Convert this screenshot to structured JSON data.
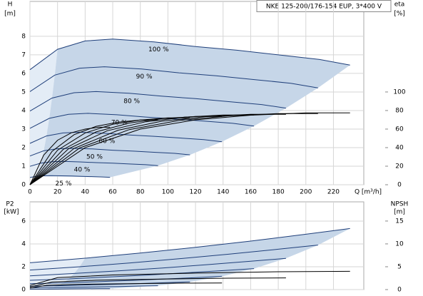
{
  "chart_data": [
    {
      "type": "line",
      "title": "NKE 125-200/176-154 EUP, 3*400 V",
      "y_label": "H",
      "y_unit": "[m]",
      "y2_label": "eta",
      "y2_unit": "[%]",
      "x_label": "Q [m³/h]",
      "xlim": [
        0,
        242
      ],
      "xticks": [
        0,
        20,
        40,
        60,
        80,
        100,
        120,
        140,
        160,
        180,
        200,
        220
      ],
      "ylim": [
        0,
        9.88
      ],
      "yticks": [
        0,
        1,
        2,
        3,
        4,
        5,
        6,
        7,
        8
      ],
      "y2lim": [
        0,
        197.6
      ],
      "y2ticks": [
        0,
        20,
        40,
        60,
        80,
        100
      ],
      "grid": true,
      "series": [
        {
          "name": "100 %",
          "color": "#1f3f7a",
          "x": [
            0,
            20,
            40,
            60,
            90,
            120,
            150,
            180,
            210,
            232
          ],
          "values": [
            6.2,
            7.3,
            7.75,
            7.85,
            7.7,
            7.45,
            7.25,
            7.0,
            6.75,
            6.45
          ]
        },
        {
          "name": "90 %",
          "color": "#1f3f7a",
          "x": [
            0,
            18,
            36,
            54,
            81,
            108,
            135,
            162,
            189,
            208.8
          ],
          "values": [
            5.02,
            5.91,
            6.28,
            6.36,
            6.24,
            6.03,
            5.87,
            5.67,
            5.47,
            5.22
          ]
        },
        {
          "name": "80 %",
          "color": "#1f3f7a",
          "x": [
            0,
            16,
            32,
            48,
            72,
            96,
            120,
            144,
            168,
            185.6
          ],
          "values": [
            3.97,
            4.67,
            4.96,
            5.02,
            4.93,
            4.77,
            4.64,
            4.48,
            4.32,
            4.13
          ]
        },
        {
          "name": "70 %",
          "color": "#1f3f7a",
          "x": [
            0,
            14,
            28,
            42,
            63,
            84,
            105,
            126,
            147,
            162.4
          ],
          "values": [
            3.04,
            3.58,
            3.8,
            3.85,
            3.77,
            3.65,
            3.55,
            3.43,
            3.31,
            3.16
          ]
        },
        {
          "name": "60 %",
          "color": "#1f3f7a",
          "x": [
            0,
            12,
            24,
            36,
            54,
            72,
            90,
            108,
            126,
            139.2
          ],
          "values": [
            2.23,
            2.63,
            2.79,
            2.83,
            2.77,
            2.68,
            2.61,
            2.52,
            2.43,
            2.32
          ]
        },
        {
          "name": "50 %",
          "color": "#1f3f7a",
          "x": [
            0,
            10,
            20,
            30,
            45,
            60,
            75,
            90,
            105,
            116
          ],
          "values": [
            1.55,
            1.83,
            1.94,
            1.96,
            1.93,
            1.86,
            1.81,
            1.75,
            1.69,
            1.61
          ]
        },
        {
          "name": "40 %",
          "color": "#1f3f7a",
          "x": [
            0,
            8,
            16,
            24,
            36,
            48,
            60,
            72,
            84,
            92.8
          ],
          "values": [
            0.99,
            1.17,
            1.24,
            1.26,
            1.23,
            1.19,
            1.16,
            1.12,
            1.08,
            1.03
          ]
        },
        {
          "name": "25 %",
          "color": "#1f3f7a",
          "x": [
            0,
            5,
            10,
            15,
            22.5,
            30,
            37.5,
            45,
            52.5,
            58
          ],
          "values": [
            0.39,
            0.46,
            0.48,
            0.49,
            0.48,
            0.47,
            0.45,
            0.44,
            0.42,
            0.4
          ]
        },
        {
          "axis": "y2",
          "color": "#000000",
          "x": [
            0,
            40,
            80,
            120,
            160,
            200,
            232
          ],
          "values": [
            0,
            40,
            60,
            70,
            75,
            77.5,
            77.5
          ]
        },
        {
          "axis": "y2",
          "color": "#000000",
          "x": [
            0,
            36,
            72,
            108,
            144,
            180,
            208.8
          ],
          "values": [
            0,
            39.6,
            59.4,
            69.3,
            74.3,
            76.7,
            76.7
          ]
        },
        {
          "axis": "y2",
          "color": "#000000",
          "x": [
            0,
            32,
            64,
            96,
            128,
            160,
            185.6
          ],
          "values": [
            0,
            39.2,
            58.8,
            68.6,
            73.5,
            76.0,
            76.0
          ]
        },
        {
          "axis": "y2",
          "color": "#000000",
          "x": [
            0,
            28,
            56,
            84,
            112,
            140,
            162.4
          ],
          "values": [
            0,
            38.8,
            58.2,
            67.9,
            72.8,
            75.2,
            75.2
          ]
        },
        {
          "axis": "y2",
          "color": "#000000",
          "x": [
            0,
            24,
            48,
            72,
            96,
            120,
            139.2
          ],
          "values": [
            0,
            38,
            57,
            66.5,
            71.3,
            73.6,
            73.6
          ]
        },
        {
          "axis": "y2",
          "color": "#000000",
          "x": [
            0,
            20,
            40,
            60,
            80,
            100,
            116
          ],
          "values": [
            0,
            37.2,
            55.8,
            65.1,
            69.8,
            72.1,
            72.1
          ]
        },
        {
          "axis": "y2",
          "color": "#000000",
          "x": [
            0,
            16,
            32,
            48,
            64,
            80,
            92.8
          ],
          "values": [
            0,
            36,
            54,
            63,
            67.5,
            69.8,
            69.8
          ]
        },
        {
          "axis": "y2",
          "color": "#000000",
          "x": [
            0,
            10,
            20,
            30,
            40,
            50,
            58
          ],
          "values": [
            0,
            32,
            48,
            56,
            60,
            62,
            62
          ]
        }
      ]
    },
    {
      "type": "line",
      "y_label": "P2",
      "y_unit": "[kW]",
      "y2_label": "NPSH",
      "y2_unit": "[m]",
      "xlim": [
        0,
        242
      ],
      "xticks": [
        0,
        20,
        40,
        60,
        80,
        100,
        120,
        140,
        160,
        180,
        200,
        220
      ],
      "ylim": [
        0,
        7.69
      ],
      "yticks": [
        0,
        2,
        4,
        6
      ],
      "y2lim": [
        0,
        19.2
      ],
      "y2ticks": [
        0,
        5,
        10,
        15
      ],
      "grid": true,
      "series": [
        {
          "color": "#1f3f7a",
          "x": [
            0,
            40,
            80,
            120,
            160,
            200,
            232
          ],
          "values": [
            2.35,
            2.75,
            3.2,
            3.7,
            4.25,
            4.85,
            5.35
          ]
        },
        {
          "color": "#1f3f7a",
          "x": [
            0,
            36,
            72,
            108,
            144,
            180,
            208.8
          ],
          "values": [
            1.71,
            2.0,
            2.33,
            2.7,
            3.1,
            3.54,
            3.9
          ]
        },
        {
          "color": "#1f3f7a",
          "x": [
            0,
            32,
            64,
            96,
            128,
            160,
            185.6
          ],
          "values": [
            1.2,
            1.41,
            1.64,
            1.89,
            2.18,
            2.48,
            2.74
          ]
        },
        {
          "color": "#1f3f7a",
          "x": [
            0,
            28,
            56,
            84,
            112,
            140,
            162.4
          ],
          "values": [
            0.81,
            0.94,
            1.1,
            1.27,
            1.46,
            1.66,
            1.84
          ]
        },
        {
          "color": "#1f3f7a",
          "x": [
            0,
            24,
            48,
            72,
            96,
            120,
            139.2
          ],
          "values": [
            0.51,
            0.59,
            0.69,
            0.8,
            0.92,
            1.05,
            1.16
          ]
        },
        {
          "color": "#1f3f7a",
          "x": [
            0,
            20,
            40,
            60,
            80,
            100,
            116
          ],
          "values": [
            0.29,
            0.34,
            0.4,
            0.46,
            0.53,
            0.61,
            0.67
          ]
        },
        {
          "color": "#1f3f7a",
          "x": [
            0,
            16,
            32,
            48,
            64,
            80,
            92.8
          ],
          "values": [
            0.15,
            0.18,
            0.2,
            0.24,
            0.27,
            0.31,
            0.34
          ]
        },
        {
          "color": "#1f3f7a",
          "x": [
            0,
            10,
            20,
            30,
            40,
            50,
            58
          ],
          "values": [
            0.04,
            0.04,
            0.05,
            0.06,
            0.07,
            0.08,
            0.08
          ]
        },
        {
          "axis": "y2",
          "color": "#000000",
          "x": [
            0,
            20,
            60,
            120,
            180,
            232
          ],
          "values": [
            0.9,
            2.6,
            3.2,
            3.6,
            3.9,
            4.0
          ]
        },
        {
          "axis": "y2",
          "color": "#000000",
          "x": [
            0,
            16,
            48,
            96,
            144,
            185.6
          ],
          "values": [
            0.58,
            1.66,
            2.05,
            2.3,
            2.5,
            2.56
          ]
        },
        {
          "axis": "y2",
          "color": "#000000",
          "x": [
            0,
            12,
            36,
            72,
            108,
            139.2
          ],
          "values": [
            0.32,
            0.94,
            1.15,
            1.3,
            1.4,
            1.44
          ]
        }
      ]
    }
  ]
}
